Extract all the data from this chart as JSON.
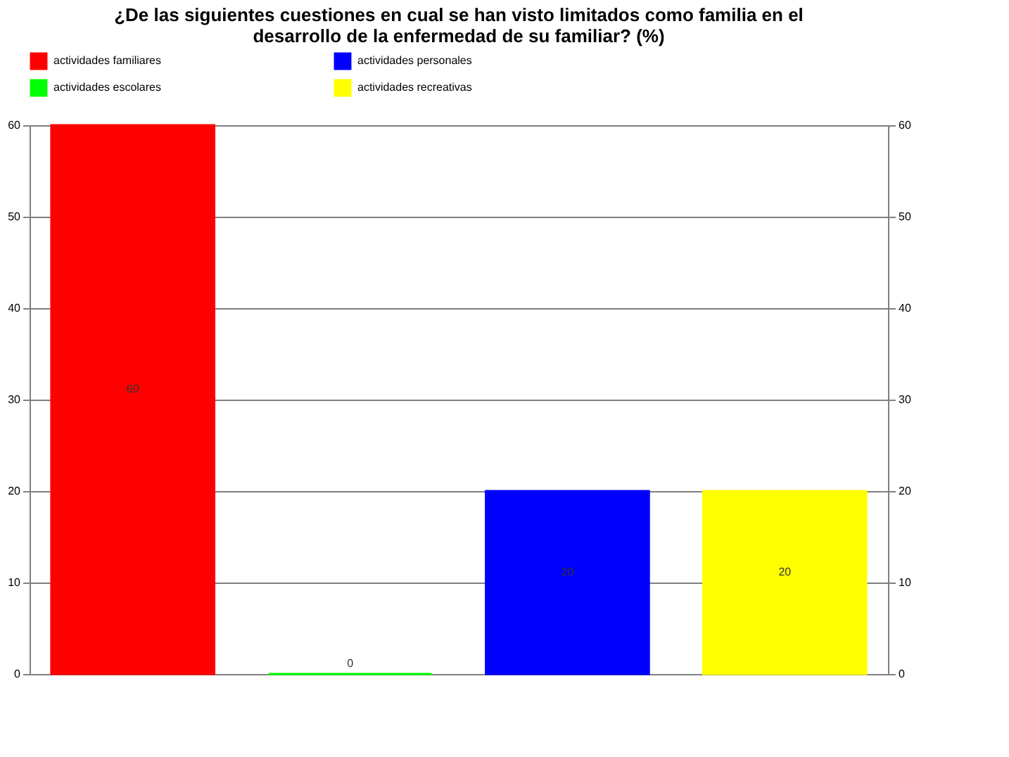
{
  "chart_data": {
    "type": "bar",
    "title": "¿De las siguientes cuestiones en cual  se han visto limitados como familia en el desarrollo de la enfermedad de su familiar? (%)",
    "categories": [
      null
    ],
    "series": [
      {
        "name": "actividades familiares",
        "color": "#ff0000",
        "values": [
          60
        ]
      },
      {
        "name": "actividades escolares",
        "color": "#00ff00",
        "values": [
          0
        ]
      },
      {
        "name": "actividades  personales",
        "color": "#0000ff",
        "values": [
          20
        ]
      },
      {
        "name": "actividades recreativas",
        "color": "#ffff00",
        "values": [
          20
        ]
      }
    ],
    "ylim": [
      0,
      60
    ],
    "yticks": [
      0,
      10,
      20,
      30,
      40,
      50,
      60
    ],
    "y2lim": [
      0,
      60
    ],
    "y2ticks": [
      0,
      10,
      20,
      30,
      40,
      50,
      60
    ],
    "grid": "y",
    "legend": "top",
    "data_labels": true
  }
}
